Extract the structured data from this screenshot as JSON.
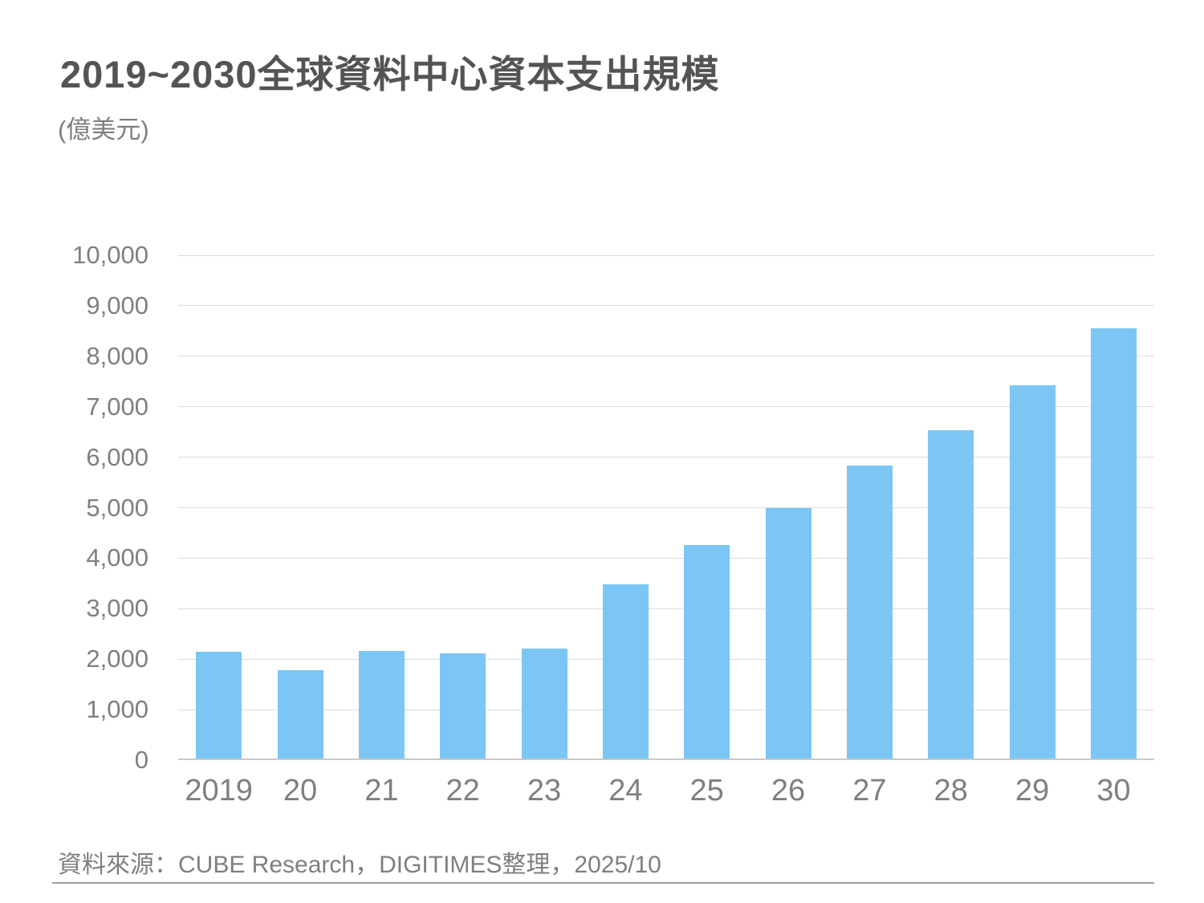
{
  "chart_data": {
    "type": "bar",
    "title": "2019~2030全球資料中心資本支出規模",
    "unit_label": "(億美元)",
    "categories": [
      "2019",
      "20",
      "21",
      "22",
      "23",
      "24",
      "25",
      "26",
      "27",
      "28",
      "29",
      "30"
    ],
    "values": [
      2150,
      1780,
      2160,
      2120,
      2210,
      3480,
      4260,
      5000,
      5830,
      6540,
      7420,
      8560
    ],
    "xlabel": "",
    "ylabel": "(億美元)",
    "ylim": [
      0,
      10000
    ],
    "y_tick_step": 1000,
    "y_tick_labels": [
      "0",
      "1,000",
      "2,000",
      "3,000",
      "4,000",
      "5,000",
      "6,000",
      "7,000",
      "8,000",
      "9,000",
      "10,000"
    ],
    "grid": true,
    "legend": "none",
    "bar_color": "#7bc6f5",
    "gridline_color": "#dcdcdc",
    "axis_line_color": "#c9c9c9",
    "tick_label_color": "#7f7f7f",
    "title_color": "#545454"
  },
  "footer": {
    "source": "資料來源：CUBE Research，DIGITIMES整理，2025/10"
  }
}
